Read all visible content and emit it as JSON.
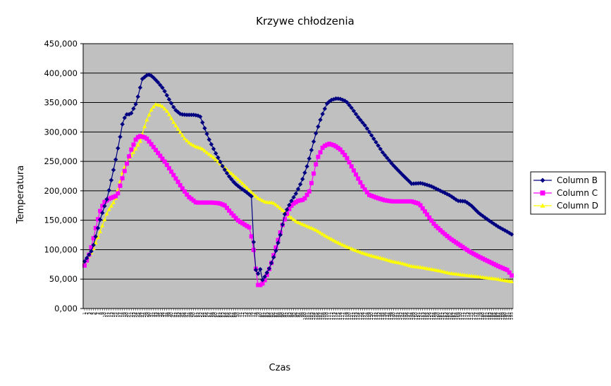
{
  "chart_data": {
    "type": "line",
    "title": "Krzywe chłodzenia",
    "xlabel": "Czas",
    "ylabel": "Temperatura",
    "ylim": [
      0,
      450
    ],
    "y_ticks": [
      "0,000",
      "50,000",
      "100,000",
      "150,000",
      "200,000",
      "250,000",
      "300,000",
      "350,000",
      "400,000",
      "450,000"
    ],
    "n_points": 193,
    "grid": "horizontal",
    "plot_background": "#c0c0c0",
    "legend_position": "right",
    "series": [
      {
        "name": "Column B",
        "color": "#000080",
        "marker": "diamond",
        "keyframes": [
          [
            0,
            80
          ],
          [
            4,
            100
          ],
          [
            8,
            150
          ],
          [
            12,
            190
          ],
          [
            16,
            250
          ],
          [
            19,
            300
          ],
          [
            20,
            320
          ],
          [
            22,
            330
          ],
          [
            24,
            330
          ],
          [
            27,
            350
          ],
          [
            30,
            390
          ],
          [
            33,
            398
          ],
          [
            35,
            395
          ],
          [
            38,
            385
          ],
          [
            41,
            373
          ],
          [
            44,
            355
          ],
          [
            47,
            338
          ],
          [
            50,
            330
          ],
          [
            53,
            329
          ],
          [
            57,
            329
          ],
          [
            60,
            327
          ],
          [
            62,
            310
          ],
          [
            65,
            285
          ],
          [
            68,
            265
          ],
          [
            72,
            240
          ],
          [
            75,
            225
          ],
          [
            78,
            213
          ],
          [
            81,
            205
          ],
          [
            84,
            198
          ],
          [
            87,
            190
          ],
          [
            88,
            102
          ],
          [
            89,
            66
          ],
          [
            90,
            55
          ],
          [
            91,
            77
          ],
          [
            92,
            47
          ],
          [
            93,
            50
          ],
          [
            96,
            68
          ],
          [
            99,
            93
          ],
          [
            102,
            128
          ],
          [
            104,
            160
          ],
          [
            107,
            180
          ],
          [
            110,
            196
          ],
          [
            113,
            217
          ],
          [
            116,
            245
          ],
          [
            118,
            270
          ],
          [
            120,
            295
          ],
          [
            123,
            325
          ],
          [
            126,
            348
          ],
          [
            128,
            354
          ],
          [
            131,
            357
          ],
          [
            133,
            356
          ],
          [
            136,
            352
          ],
          [
            139,
            340
          ],
          [
            142,
            326
          ],
          [
            146,
            310
          ],
          [
            150,
            290
          ],
          [
            155,
            265
          ],
          [
            160,
            245
          ],
          [
            165,
            228
          ],
          [
            170,
            212
          ],
          [
            175,
            213
          ],
          [
            180,
            208
          ],
          [
            185,
            200
          ],
          [
            190,
            192
          ],
          [
            194,
            183
          ],
          [
            198,
            182
          ],
          [
            201,
            175
          ],
          [
            205,
            162
          ],
          [
            210,
            150
          ],
          [
            215,
            139
          ],
          [
            220,
            130
          ],
          [
            222,
            126
          ]
        ]
      },
      {
        "name": "Column C",
        "color": "#ff00ff",
        "marker": "square",
        "keyframes": [
          [
            0,
            73
          ],
          [
            2,
            88
          ],
          [
            4,
            110
          ],
          [
            6,
            140
          ],
          [
            8,
            165
          ],
          [
            10,
            180
          ],
          [
            13,
            187
          ],
          [
            17,
            192
          ],
          [
            20,
            225
          ],
          [
            24,
            268
          ],
          [
            27,
            290
          ],
          [
            29,
            293
          ],
          [
            32,
            290
          ],
          [
            35,
            278
          ],
          [
            38,
            265
          ],
          [
            42,
            248
          ],
          [
            46,
            228
          ],
          [
            50,
            208
          ],
          [
            54,
            190
          ],
          [
            58,
            180
          ],
          [
            62,
            180
          ],
          [
            66,
            180
          ],
          [
            70,
            179
          ],
          [
            73,
            175
          ],
          [
            76,
            163
          ],
          [
            80,
            149
          ],
          [
            84,
            141
          ],
          [
            86,
            137
          ],
          [
            88,
            97
          ],
          [
            90,
            40
          ],
          [
            92,
            40
          ],
          [
            94,
            50
          ],
          [
            97,
            76
          ],
          [
            100,
            110
          ],
          [
            103,
            143
          ],
          [
            106,
            167
          ],
          [
            108,
            177
          ],
          [
            111,
            183
          ],
          [
            114,
            185
          ],
          [
            117,
            200
          ],
          [
            119,
            228
          ],
          [
            121,
            255
          ],
          [
            124,
            275
          ],
          [
            127,
            280
          ],
          [
            130,
            277
          ],
          [
            133,
            270
          ],
          [
            136,
            258
          ],
          [
            139,
            240
          ],
          [
            142,
            222
          ],
          [
            145,
            205
          ],
          [
            148,
            193
          ],
          [
            152,
            188
          ],
          [
            156,
            184
          ],
          [
            160,
            182
          ],
          [
            165,
            182
          ],
          [
            170,
            182
          ],
          [
            174,
            178
          ],
          [
            178,
            160
          ],
          [
            182,
            142
          ],
          [
            186,
            130
          ],
          [
            190,
            119
          ],
          [
            195,
            108
          ],
          [
            200,
            97
          ],
          [
            205,
            88
          ],
          [
            210,
            80
          ],
          [
            215,
            72
          ],
          [
            220,
            65
          ],
          [
            222,
            56
          ]
        ]
      },
      {
        "name": "Column D",
        "color": "#ffff00",
        "marker": "triangle",
        "keyframes": [
          [
            0,
            80
          ],
          [
            4,
            97
          ],
          [
            8,
            130
          ],
          [
            12,
            165
          ],
          [
            16,
            185
          ],
          [
            20,
            235
          ],
          [
            23,
            255
          ],
          [
            26,
            268
          ],
          [
            29,
            285
          ],
          [
            32,
            318
          ],
          [
            35,
            340
          ],
          [
            37,
            347
          ],
          [
            40,
            345
          ],
          [
            43,
            335
          ],
          [
            46,
            318
          ],
          [
            49,
            303
          ],
          [
            52,
            289
          ],
          [
            55,
            280
          ],
          [
            58,
            275
          ],
          [
            61,
            272
          ],
          [
            64,
            264
          ],
          [
            67,
            257
          ],
          [
            70,
            248
          ],
          [
            74,
            236
          ],
          [
            78,
            225
          ],
          [
            82,
            213
          ],
          [
            86,
            200
          ],
          [
            90,
            188
          ],
          [
            94,
            181
          ],
          [
            98,
            180
          ],
          [
            102,
            170
          ],
          [
            106,
            158
          ],
          [
            110,
            148
          ],
          [
            115,
            141
          ],
          [
            120,
            134
          ],
          [
            125,
            124
          ],
          [
            130,
            115
          ],
          [
            135,
            107
          ],
          [
            140,
            100
          ],
          [
            145,
            94
          ],
          [
            150,
            89
          ],
          [
            155,
            85
          ],
          [
            160,
            80
          ],
          [
            165,
            77
          ],
          [
            170,
            72
          ],
          [
            175,
            70
          ],
          [
            180,
            67
          ],
          [
            185,
            64
          ],
          [
            190,
            60
          ],
          [
            195,
            58
          ],
          [
            200,
            56
          ],
          [
            205,
            54
          ],
          [
            210,
            52
          ],
          [
            215,
            50
          ],
          [
            220,
            47
          ],
          [
            222,
            46
          ]
        ]
      }
    ]
  }
}
